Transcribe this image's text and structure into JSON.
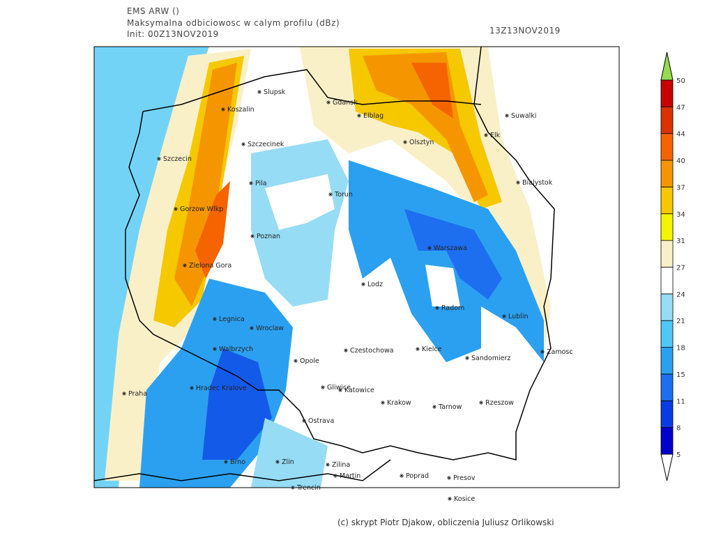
{
  "header": {
    "model": "EMS ARW ()",
    "field": "Maksymalna odbiciowosc w calym profilu (dBz)",
    "init": "Init: 00Z13NOV2019",
    "valid": "13Z13NOV2019"
  },
  "cities": [
    "Slupsk",
    "Koszalin",
    "Gdansk",
    "Elblag",
    "Suwalki",
    "Szczecinek",
    "Olsztyn",
    "Elk",
    "Szczecin",
    "Pila",
    "Torun",
    "Bialystok",
    "Gorzow Wlkp",
    "Poznan",
    "Warszawa",
    "Zielona Gora",
    "Lodz",
    "Radom",
    "Lublin",
    "Legnica",
    "Wroclaw",
    "Kielce",
    "Czestochowa",
    "Walbrzych",
    "Zamosc",
    "Opole",
    "Sandomierz",
    "Praha",
    "Hradec Kralove",
    "Gliwice",
    "Katowice",
    "Krakow",
    "Tarnow",
    "Rzeszow",
    "Ostrava",
    "Brno",
    "Zlin",
    "Zilina",
    "Poprad",
    "Presov",
    "Martin",
    "Trencin",
    "Kosice"
  ],
  "colorbar": {
    "levels": [
      5,
      8,
      11,
      15,
      18,
      21,
      24,
      27,
      31,
      34,
      37,
      40,
      44,
      47,
      50
    ],
    "colors": [
      "#0000cd",
      "#0a3ce6",
      "#1e6ef0",
      "#2ca0f0",
      "#50c8f5",
      "#96dcf5",
      "#ffffff",
      "#faf0c8",
      "#f5f500",
      "#f5c800",
      "#f59600",
      "#f56400",
      "#dc3200",
      "#c80000"
    ],
    "under_color": "#ffffff",
    "over_color": "#96dc50"
  },
  "footer": "(c) skrypt Piotr Djakow, obliczenia Juliusz Orlikowski"
}
